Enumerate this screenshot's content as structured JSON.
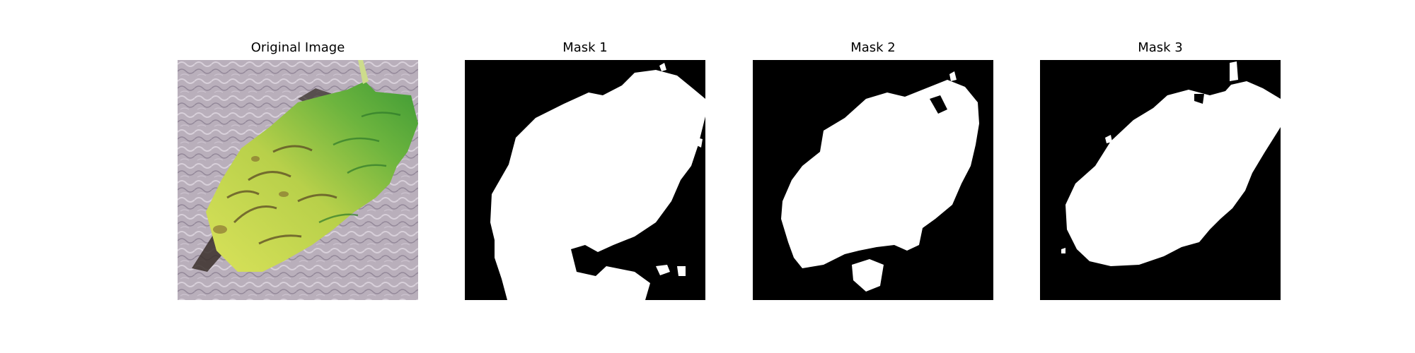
{
  "figure": {
    "panels": [
      {
        "title": "Original Image"
      },
      {
        "title": "Mask 1"
      },
      {
        "title": "Mask 2"
      },
      {
        "title": "Mask 3"
      }
    ],
    "colors": {
      "background": "#ffffff",
      "mask_background": "#000000",
      "mask_foreground": "#ffffff",
      "leaf_yellow": "#c9d84a",
      "leaf_green": "#4fa83a",
      "leaf_dark": "#5b4a24",
      "fabric": "#b7acb8"
    }
  }
}
